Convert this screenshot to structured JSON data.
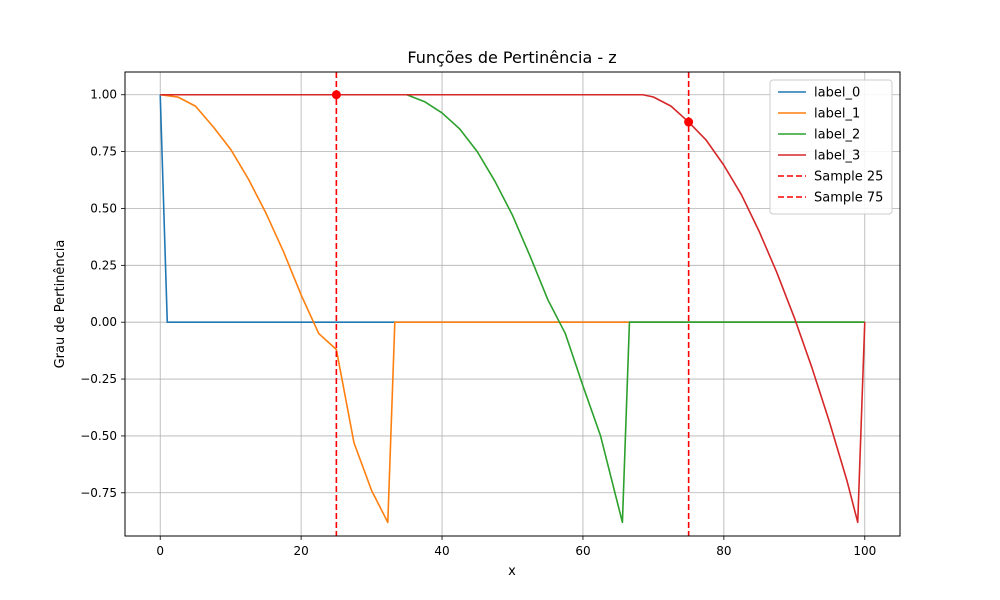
{
  "chart_data": {
    "type": "line",
    "title": "Funções de Pertinência - z",
    "xlabel": "x",
    "ylabel": "Grau de Pertinência",
    "xlim": [
      -5,
      105
    ],
    "ylim": [
      -0.94,
      1.1
    ],
    "xticks": [
      0,
      20,
      40,
      60,
      80,
      100
    ],
    "yticks": [
      1.0,
      0.75,
      0.5,
      0.25,
      0.0,
      -0.25,
      -0.5,
      -0.75
    ],
    "xtick_labels": [
      "0",
      "20",
      "40",
      "60",
      "80",
      "100"
    ],
    "ytick_labels": [
      "1.00",
      "0.75",
      "0.50",
      "0.25",
      "0.00",
      "−0.25",
      "−0.50",
      "−0.75"
    ],
    "grid": true,
    "legend_position": "top-right",
    "series": [
      {
        "name": "label_0",
        "color": "#1f77b4",
        "x": [
          0,
          1,
          33.33,
          66.67,
          100
        ],
        "y": [
          1.0,
          0.0,
          0.0,
          0.0,
          0.0
        ]
      },
      {
        "name": "label_1",
        "color": "#ff7f0e",
        "x": [
          0,
          2.5,
          5,
          7.5,
          10,
          12.5,
          15,
          17.5,
          20,
          22.5,
          25,
          27.5,
          30,
          32.3,
          33.3,
          50,
          66.67,
          100
        ],
        "y": [
          1.0,
          0.99,
          0.95,
          0.86,
          0.76,
          0.63,
          0.48,
          0.31,
          0.12,
          -0.05,
          -0.12,
          -0.53,
          -0.74,
          -0.88,
          0.0,
          0.0,
          0.0,
          0.0
        ]
      },
      {
        "name": "label_2",
        "color": "#2ca02c",
        "x": [
          33.3,
          35,
          37.5,
          40,
          42.5,
          45,
          47.5,
          50,
          52.5,
          55,
          57.5,
          60,
          62.5,
          65.6,
          66.6,
          80,
          100
        ],
        "y": [
          1.0,
          1.0,
          0.97,
          0.92,
          0.85,
          0.75,
          0.62,
          0.47,
          0.29,
          0.1,
          -0.05,
          -0.28,
          -0.5,
          -0.88,
          0.0,
          0.0,
          0.0
        ]
      },
      {
        "name": "label_3",
        "color": "#d62728",
        "x": [
          0,
          25,
          50,
          66.7,
          68.5,
          70,
          72.5,
          75,
          77.5,
          80,
          82.5,
          85,
          87.5,
          90,
          92.5,
          95,
          97.5,
          99,
          100
        ],
        "y": [
          1.0,
          1.0,
          1.0,
          1.0,
          1.0,
          0.99,
          0.95,
          0.88,
          0.8,
          0.69,
          0.56,
          0.4,
          0.22,
          0.02,
          -0.2,
          -0.44,
          -0.7,
          -0.88,
          0.0
        ]
      },
      {
        "name": "Sample 25",
        "color": "#ff0000",
        "style": "dashed",
        "vline_x": 25,
        "marker": {
          "x": 25,
          "y": 1.0
        }
      },
      {
        "name": "Sample 75",
        "color": "#ff0000",
        "style": "dashed",
        "vline_x": 75,
        "marker": {
          "x": 75,
          "y": 0.88
        }
      }
    ]
  }
}
